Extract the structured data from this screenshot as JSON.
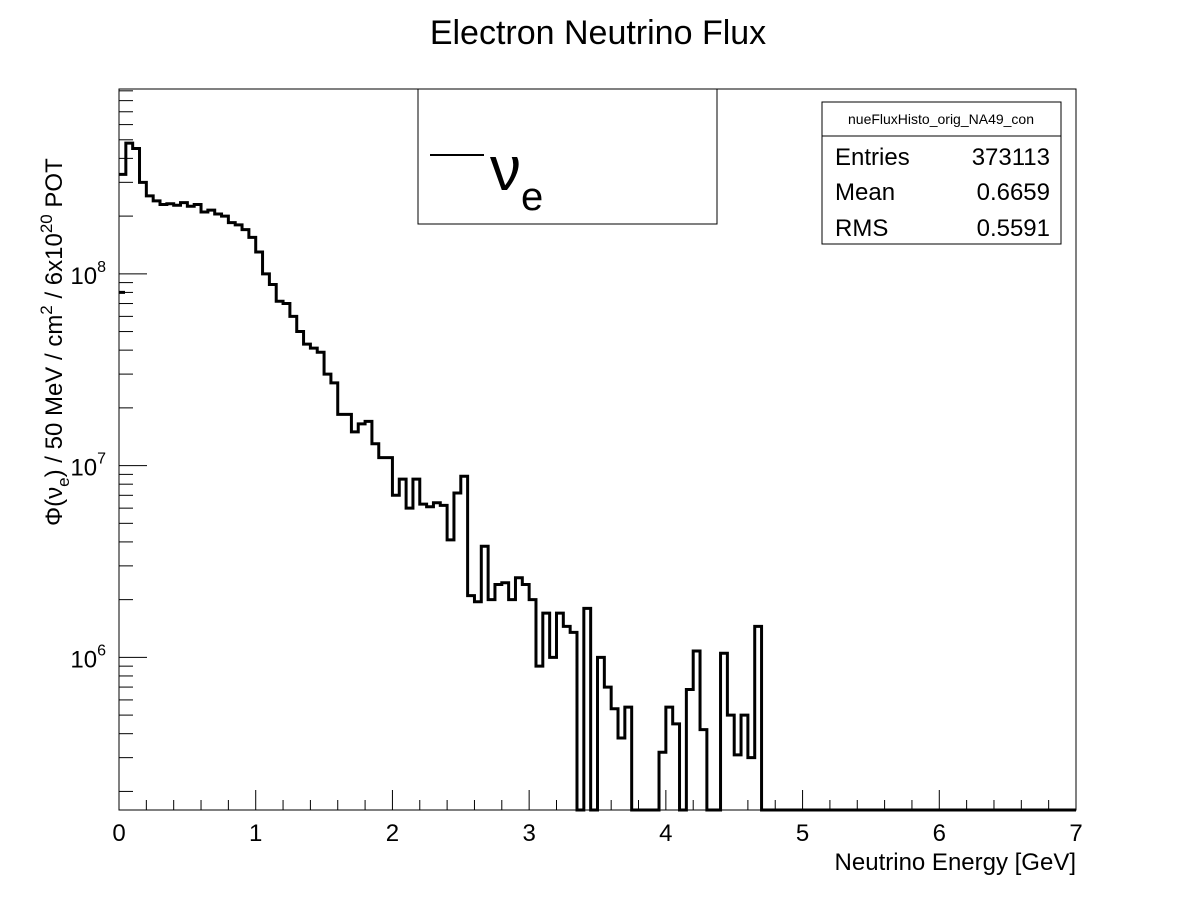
{
  "chart_data": {
    "type": "histogram",
    "title": "Electron Neutrino Flux",
    "xlabel": "Neutrino Energy [GeV]",
    "ylabel": {
      "prefix": "Φ(ν",
      "sub": "e",
      "mid": ") / 50 MeV / cm",
      "sup": "2",
      "mid2": " / 6x10",
      "sup2": "20",
      "suffix": " POT"
    },
    "xlim": [
      0,
      7
    ],
    "ylim": [
      160000,
      920000000
    ],
    "yscale": "log",
    "bin_width": 0.05,
    "xticks": [
      "0",
      "1",
      "2",
      "3",
      "4",
      "5",
      "6",
      "7"
    ],
    "yticks": [
      {
        "value": 1000000,
        "base": "10",
        "exp": "6"
      },
      {
        "value": 10000000,
        "base": "10",
        "exp": "7"
      },
      {
        "value": 100000000,
        "base": "10",
        "exp": "8"
      }
    ],
    "legend": {
      "line_color": "#000000",
      "symbol": "ν",
      "subscript": "e",
      "placement": "top-center"
    },
    "stats": {
      "name": "nueFluxHisto_orig_NA49_con",
      "rows": [
        {
          "label": "Entries",
          "value": "373113"
        },
        {
          "label": "Mean",
          "value": "0.6659"
        },
        {
          "label": "RMS",
          "value": "0.5591"
        }
      ]
    },
    "line_color": "#000000",
    "values": [
      330000000,
      480000000,
      450000000,
      300000000,
      255000000,
      240000000,
      230000000,
      232000000,
      228000000,
      235000000,
      225000000,
      230000000,
      210000000,
      215000000,
      205000000,
      200000000,
      185000000,
      180000000,
      170000000,
      155000000,
      130000000,
      100000000,
      88000000,
      72000000,
      70000000,
      60000000,
      50000000,
      43000000,
      41000000,
      39000000,
      30000000,
      27000000,
      18500000,
      18500000,
      15000000,
      16500000,
      17000000,
      13000000,
      11000000,
      11000000,
      7000000,
      8500000,
      6000000,
      8500000,
      6300000,
      6100000,
      6400000,
      6200000,
      4100000,
      7200000,
      8800000,
      2100000,
      1950000,
      3800000,
      2000000,
      2400000,
      2450000,
      2000000,
      2600000,
      2400000,
      2000000,
      900000,
      1700000,
      1000000,
      1700000,
      1450000,
      1350000,
      160000,
      1800000,
      160000,
      1000000,
      700000,
      540000,
      380000,
      550000,
      160000,
      160000,
      160000,
      160000,
      320000,
      550000,
      450000,
      160000,
      680000,
      1080000,
      420000,
      160000,
      160000,
      1050000,
      500000,
      310000,
      500000,
      300000,
      1450000,
      160000,
      160000,
      160000,
      160000,
      160000,
      160000,
      160000,
      160000,
      160000,
      160000,
      160000,
      160000,
      160000,
      160000,
      160000,
      160000,
      160000,
      160000,
      160000,
      160000,
      160000,
      160000,
      160000,
      160000,
      160000,
      160000,
      160000,
      160000,
      160000,
      160000,
      160000,
      160000,
      160000,
      160000,
      160000,
      160000,
      160000,
      160000,
      160000,
      160000,
      160000,
      160000,
      160000,
      160000,
      160000,
      160000
    ]
  }
}
